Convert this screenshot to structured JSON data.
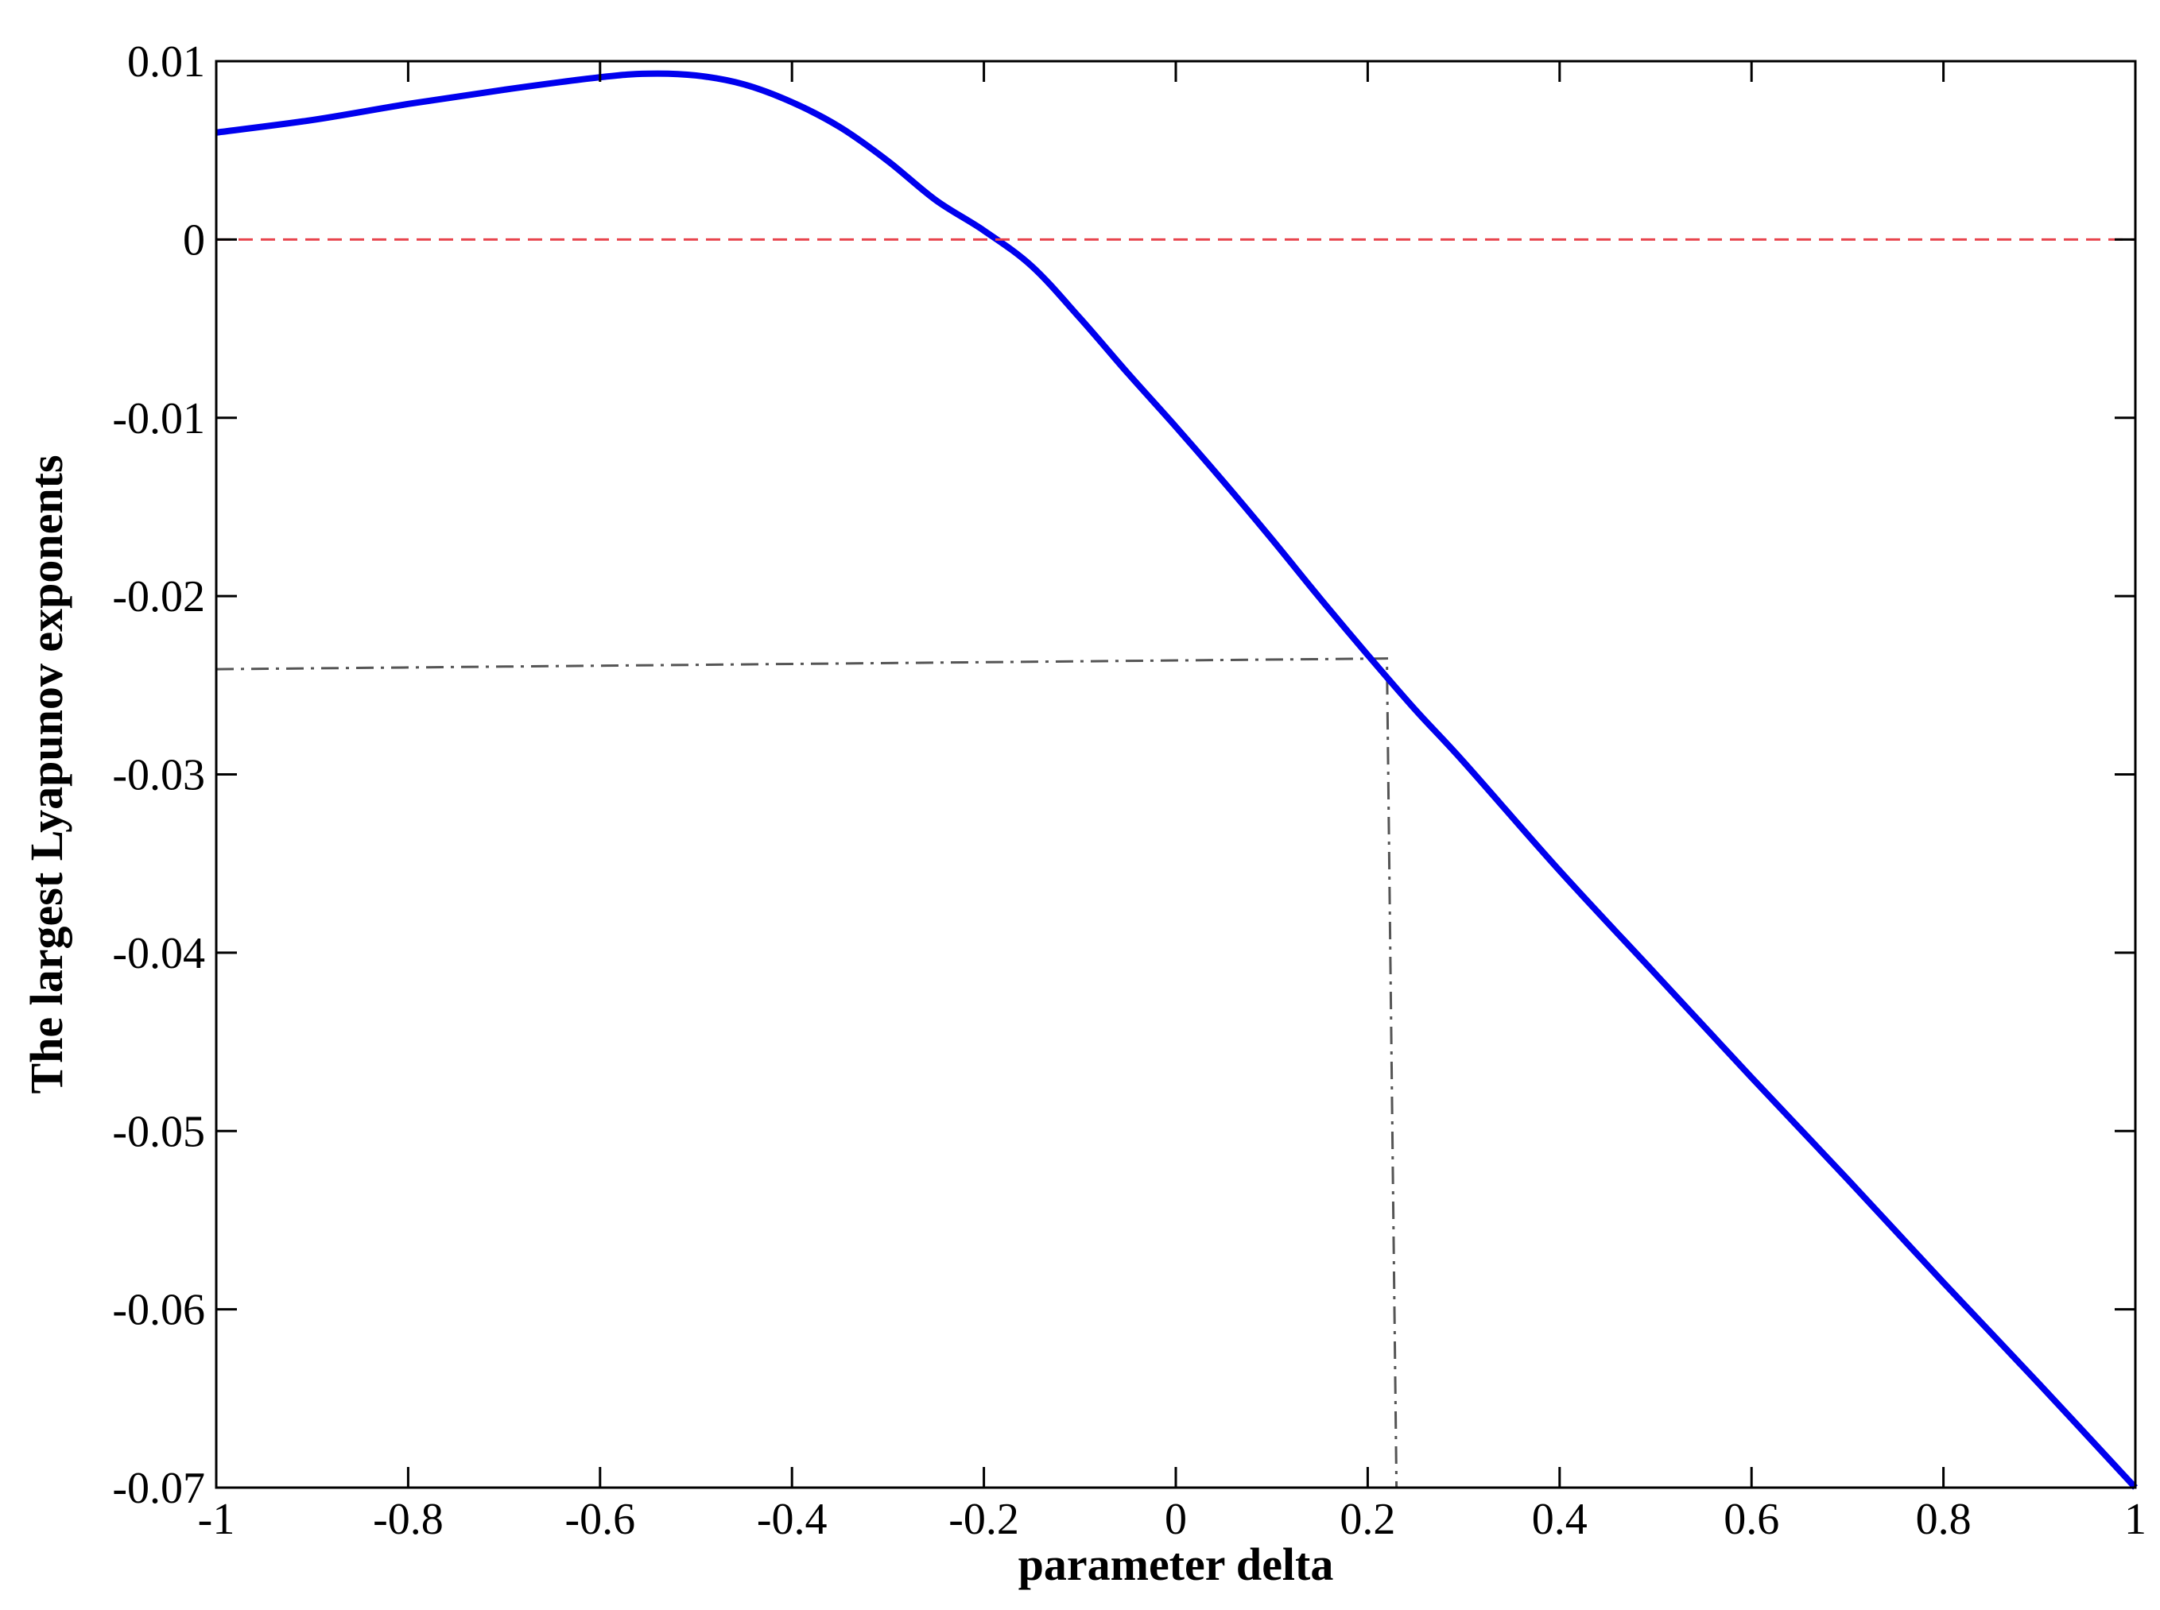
{
  "chart_data": {
    "type": "line",
    "title": "",
    "xlabel": "parameter delta",
    "ylabel": "The largest Lyapunov exponents",
    "xlim": [
      -1,
      1
    ],
    "ylim": [
      -0.07,
      0.01
    ],
    "grid": false,
    "x_ticks": [
      -1,
      -0.8,
      -0.6,
      -0.4,
      -0.2,
      0,
      0.2,
      0.4,
      0.6,
      0.8,
      1
    ],
    "x_tick_labels": [
      "-1",
      "-0.8",
      "-0.6",
      "-0.4",
      "-0.2",
      "0",
      "0.2",
      "0.4",
      "0.6",
      "0.8",
      "1"
    ],
    "y_ticks": [
      0.01,
      0,
      -0.01,
      -0.02,
      -0.03,
      -0.04,
      -0.05,
      -0.06,
      -0.07
    ],
    "y_tick_labels": [
      "0.01",
      "0",
      "-0.01",
      "-0.02",
      "-0.03",
      "-0.04",
      "-0.05",
      "-0.06",
      "-0.07"
    ],
    "series": [
      {
        "color": "#0000ee",
        "style": "solid",
        "x": [
          -1,
          -0.9,
          -0.8,
          -0.7,
          -0.6,
          -0.55,
          -0.5,
          -0.45,
          -0.4,
          -0.35,
          -0.3,
          -0.25,
          -0.2,
          -0.15,
          -0.1,
          -0.05,
          0,
          0.05,
          0.1,
          0.15,
          0.2,
          0.25,
          0.3,
          0.4,
          0.5,
          0.6,
          0.7,
          0.8,
          0.9,
          1
        ],
        "y": [
          0.006,
          0.0067,
          0.0076,
          0.0084,
          0.0091,
          0.0093,
          0.0092,
          0.0087,
          0.0077,
          0.0063,
          0.0044,
          0.0022,
          0.0005,
          -0.0015,
          -0.0044,
          -0.0075,
          -0.0105,
          -0.0136,
          -0.0168,
          -0.0201,
          -0.0233,
          -0.0264,
          -0.0293,
          -0.0354,
          -0.0412,
          -0.047,
          -0.0527,
          -0.0585,
          -0.0642,
          -0.07
        ]
      },
      {
        "color": "#e8434c",
        "style": "dashed",
        "x": [
          -1,
          1
        ],
        "y": [
          0,
          0
        ]
      }
    ],
    "annotations": [
      {
        "color": "#555555",
        "style": "dash-dot",
        "x": [
          -1,
          0.22,
          0.23
        ],
        "y": [
          -0.0241,
          -0.0235,
          -0.07
        ]
      }
    ]
  }
}
